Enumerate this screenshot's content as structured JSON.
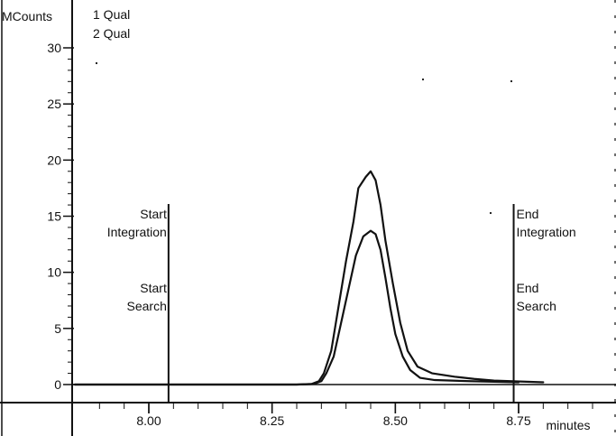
{
  "chart_data": {
    "type": "line",
    "y_unit_label": "MCounts",
    "x_unit_label": "minutes",
    "xlim": [
      7.85,
      8.95
    ],
    "ylim": [
      -1.5,
      32
    ],
    "x_ticks": [
      8.0,
      8.25,
      8.5,
      8.75
    ],
    "x_tick_labels": [
      "8.00",
      "8.25",
      "8.50",
      "8.75"
    ],
    "y_ticks": [
      0,
      5,
      10,
      15,
      20,
      25,
      30
    ],
    "y_tick_labels": [
      "0",
      "5",
      "10",
      "15",
      "20",
      "25",
      "30"
    ],
    "legend": [
      "1 Qual",
      "2 Qual"
    ],
    "legend_placement": "top-left",
    "series": [
      {
        "name": "1 Qual",
        "points": [
          [
            7.85,
            0.0
          ],
          [
            8.3,
            0.0
          ],
          [
            8.33,
            0.05
          ],
          [
            8.345,
            0.3
          ],
          [
            8.355,
            1.0
          ],
          [
            8.37,
            3.0
          ],
          [
            8.385,
            7.0
          ],
          [
            8.4,
            11.0
          ],
          [
            8.415,
            14.5
          ],
          [
            8.425,
            17.5
          ],
          [
            8.44,
            18.5
          ],
          [
            8.45,
            19.0
          ],
          [
            8.46,
            18.2
          ],
          [
            8.47,
            16.0
          ],
          [
            8.48,
            12.8
          ],
          [
            8.495,
            9.0
          ],
          [
            8.51,
            5.5
          ],
          [
            8.525,
            3.0
          ],
          [
            8.545,
            1.6
          ],
          [
            8.575,
            1.0
          ],
          [
            8.62,
            0.7
          ],
          [
            8.66,
            0.5
          ],
          [
            8.7,
            0.35
          ],
          [
            8.8,
            0.2
          ],
          [
            8.95,
            0.1
          ]
        ]
      },
      {
        "name": "2 Qual",
        "points": [
          [
            7.85,
            0.0
          ],
          [
            8.3,
            0.0
          ],
          [
            8.335,
            0.05
          ],
          [
            8.35,
            0.3
          ],
          [
            8.36,
            1.0
          ],
          [
            8.375,
            2.5
          ],
          [
            8.39,
            5.5
          ],
          [
            8.405,
            8.5
          ],
          [
            8.42,
            11.5
          ],
          [
            8.435,
            13.2
          ],
          [
            8.45,
            13.7
          ],
          [
            8.46,
            13.4
          ],
          [
            8.47,
            12.0
          ],
          [
            8.48,
            9.5
          ],
          [
            8.49,
            6.8
          ],
          [
            8.5,
            4.5
          ],
          [
            8.515,
            2.5
          ],
          [
            8.53,
            1.3
          ],
          [
            8.55,
            0.6
          ],
          [
            8.58,
            0.4
          ],
          [
            8.65,
            0.3
          ],
          [
            8.75,
            0.2
          ],
          [
            8.95,
            0.15
          ]
        ]
      }
    ],
    "markers": [
      {
        "name": "start",
        "x": 8.04,
        "upper_label": [
          "Start",
          "Integration"
        ],
        "lower_label": [
          "Start",
          "Search"
        ],
        "align": "right"
      },
      {
        "name": "end",
        "x": 8.74,
        "upper_label": [
          "End",
          "Integration"
        ],
        "lower_label": [
          "End",
          "Search"
        ],
        "align": "left"
      }
    ],
    "colors": {
      "line": "#111111",
      "background": "#ffffff"
    }
  }
}
